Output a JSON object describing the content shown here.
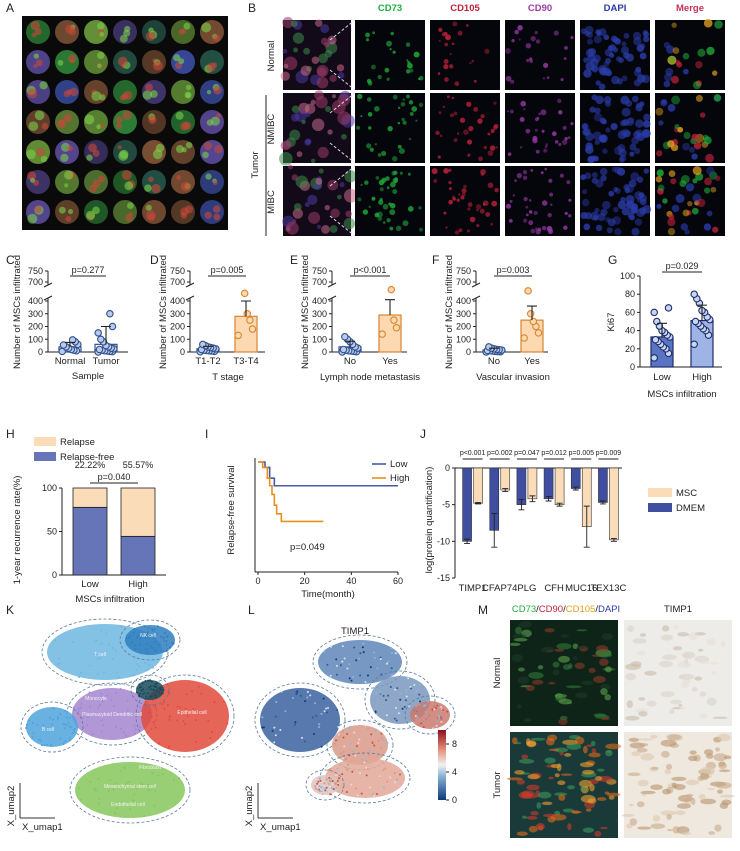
{
  "panel_letters": [
    "A",
    "B",
    "C",
    "D",
    "E",
    "F",
    "G",
    "H",
    "I",
    "J",
    "K",
    "L",
    "M"
  ],
  "panel_b": {
    "columns": [
      {
        "label": "CD73",
        "color": "#1fae3a"
      },
      {
        "label": "CD105",
        "color": "#c0223a"
      },
      {
        "label": "CD90",
        "color": "#9b3aa8"
      },
      {
        "label": "DAPI",
        "color": "#2a3ca8"
      },
      {
        "label": "Merge",
        "color": "#c8305a"
      }
    ],
    "rows": [
      "Normal",
      "NMIBC",
      "MIBC"
    ],
    "group": "Tumor"
  },
  "chart_data": [
    {
      "type": "dot_bar",
      "ylabel": "Number of MSCs infiltrated",
      "xlabel": "Sample",
      "categories": [
        "Normal",
        "Tumor"
      ],
      "values": [
        40,
        60
      ],
      "errors": [
        35,
        140
      ],
      "points": [
        [
          5,
          10,
          15,
          20,
          30,
          40,
          55,
          60,
          80,
          95
        ],
        [
          0,
          3,
          5,
          8,
          10,
          15,
          20,
          25,
          30,
          40,
          50,
          80,
          100,
          150,
          200,
          300
        ]
      ],
      "ylim": [
        0,
        750
      ],
      "ybreak": [
        400,
        700
      ],
      "yticks": [
        0,
        100,
        200,
        300,
        400,
        700,
        750
      ],
      "p_value": "p=0.277",
      "colors": [
        "#2f4f8f",
        "#2f4f8f"
      ],
      "bar_fills": [
        "none",
        "none"
      ],
      "point_fills": [
        "#b9cbe6",
        "#b9cbe6"
      ]
    },
    {
      "type": "dot_bar",
      "ylabel": "Number of MSCs infiltrated",
      "xlabel": "T stage",
      "categories": [
        "T1-T2",
        "T3-T4"
      ],
      "values": [
        25,
        280
      ],
      "errors": [
        20,
        120
      ],
      "points": [
        [
          2,
          5,
          8,
          10,
          12,
          15,
          20,
          25,
          30,
          35,
          40,
          50,
          60
        ],
        [
          130,
          180,
          250,
          300,
          520
        ]
      ],
      "ylim": [
        0,
        750
      ],
      "ybreak": [
        400,
        700
      ],
      "yticks": [
        0,
        100,
        200,
        300,
        400,
        700,
        750
      ],
      "p_value": "p=0.005",
      "colors": [
        "#2f4f8f",
        "#d9862e"
      ],
      "bar_fills": [
        "none",
        "#fcd9b0"
      ],
      "point_fills": [
        "#b9cbe6",
        "#fcd9b0"
      ]
    },
    {
      "type": "dot_bar",
      "ylabel": "Number of MSCs infiltrated",
      "xlabel": "Lymph node metastasis",
      "categories": [
        "No",
        "Yes"
      ],
      "values": [
        40,
        290
      ],
      "errors": [
        45,
        130
      ],
      "points": [
        [
          0,
          2,
          5,
          8,
          10,
          15,
          20,
          30,
          40,
          60,
          80,
          100,
          120
        ],
        [
          140,
          190,
          250,
          580
        ]
      ],
      "ylim": [
        0,
        750
      ],
      "ybreak": [
        400,
        700
      ],
      "yticks": [
        0,
        100,
        200,
        300,
        400,
        700,
        750
      ],
      "p_value": "p<0.001",
      "colors": [
        "#2f4f8f",
        "#d9862e"
      ],
      "bar_fills": [
        "none",
        "#fcd9b0"
      ],
      "point_fills": [
        "#b9cbe6",
        "#fcd9b0"
      ]
    },
    {
      "type": "dot_bar",
      "ylabel": "Number of MSCs infiltrated",
      "xlabel": "Vascular invasion",
      "categories": [
        "No",
        "Yes"
      ],
      "values": [
        15,
        250
      ],
      "errors": [
        15,
        110
      ],
      "points": [
        [
          0,
          2,
          3,
          5,
          8,
          10,
          12,
          15,
          18,
          20,
          25,
          30,
          40
        ],
        [
          110,
          150,
          200,
          240,
          300,
          560
        ]
      ],
      "ylim": [
        0,
        750
      ],
      "ybreak": [
        400,
        700
      ],
      "yticks": [
        0,
        100,
        200,
        300,
        400,
        700,
        750
      ],
      "p_value": "p=0.003",
      "colors": [
        "#2f4f8f",
        "#d9862e"
      ],
      "bar_fills": [
        "none",
        "#fcd9b0"
      ],
      "point_fills": [
        "#b9cbe6",
        "#fcd9b0"
      ]
    },
    {
      "type": "dot_bar",
      "ylabel": "Ki67",
      "xlabel": "MSCs infiltration",
      "categories": [
        "Low",
        "High"
      ],
      "values": [
        33,
        51
      ],
      "errors": [
        15,
        17
      ],
      "points": [
        [
          10,
          15,
          20,
          22,
          25,
          28,
          30,
          33,
          35,
          38,
          40,
          45,
          50,
          60,
          65
        ],
        [
          25,
          35,
          40,
          42,
          45,
          48,
          50,
          52,
          55,
          60,
          62,
          70,
          75,
          80
        ]
      ],
      "ylim": [
        0,
        100
      ],
      "yticks": [
        0,
        20,
        40,
        60,
        80,
        100
      ],
      "p_value": "p=0.029",
      "colors": [
        "#1f2d6a",
        "#1f2d6a"
      ],
      "bar_fills": [
        "#5a74c4",
        "#9fb4e6"
      ],
      "point_fills": [
        "#c9d6f0",
        "#c9d6f0"
      ]
    },
    {
      "type": "stacked_bar",
      "ylabel": "1-year recurrence rate(%)",
      "xlabel": "MSCs infiltration",
      "categories": [
        "Low",
        "High"
      ],
      "series": [
        {
          "name": "Relapse-free",
          "color": "#6674b8",
          "values": [
            77.78,
            44.43
          ]
        },
        {
          "name": "Relapse",
          "color": "#fbdcb8",
          "values": [
            22.22,
            55.57
          ],
          "value_labels": [
            "22.22%",
            "55.57%"
          ]
        }
      ],
      "ylim": [
        0,
        100
      ],
      "yticks": [
        0,
        50,
        100
      ],
      "p_value": "p=0.040"
    },
    {
      "type": "line",
      "ylabel": "Relapse-free survival",
      "xlabel": "Time(month)",
      "series": [
        {
          "name": "Low",
          "color": "#4a5aa8",
          "x": [
            0,
            3,
            3,
            5,
            5,
            7,
            7,
            60
          ],
          "values": [
            100,
            100,
            95,
            95,
            85,
            85,
            78,
            78
          ]
        },
        {
          "name": "High",
          "color": "#e8901e",
          "x": [
            0,
            2,
            2,
            4,
            4,
            5,
            5,
            6,
            6,
            7,
            7,
            8,
            8,
            10,
            10,
            28
          ],
          "values": [
            100,
            100,
            95,
            95,
            85,
            85,
            78,
            78,
            70,
            70,
            60,
            60,
            52,
            52,
            45,
            45
          ]
        }
      ],
      "xlim": [
        0,
        60
      ],
      "xticks": [
        0,
        20,
        40,
        60
      ],
      "ylim": [
        0,
        100
      ],
      "annotation": "p=0.049"
    },
    {
      "type": "bar",
      "ylabel": "log(protein quantification)",
      "categories": [
        "TIMP1",
        "CFAP74",
        "PLG",
        "CFH",
        "MUC16",
        "TEX13C"
      ],
      "series": [
        {
          "name": "DMEM",
          "color": "#3f4ea0",
          "values": [
            -10,
            -8.5,
            -5,
            -4.2,
            -2.8,
            -4.7
          ],
          "errors": [
            0.3,
            2.3,
            0.7,
            0.3,
            0.2,
            0.2
          ]
        },
        {
          "name": "MSC",
          "color": "#fbdcb8",
          "values": [
            -4.8,
            -3,
            -4.2,
            -5,
            -8,
            -9.8
          ],
          "errors": [
            0.1,
            0.2,
            0.4,
            0.2,
            2.8,
            0.2
          ]
        }
      ],
      "ylim": [
        -15,
        0
      ],
      "yticks": [
        0,
        -5,
        -10,
        -15
      ],
      "p_values": [
        "p<0.001",
        "p=0.002",
        "p=0.047",
        "p=0.012",
        "p=0.005",
        "p=0.009"
      ]
    }
  ],
  "panel_k": {
    "clusters": [
      "NK cell",
      "T cell",
      "Monocyte",
      "Plasmacytoid Dendritic cell",
      "B cell",
      "Epithelial cell",
      "Fibroblast",
      "Mesenchymal stem cell",
      "Endothelial cell"
    ],
    "xlabel": "X_umap1",
    "ylabel": "X_umap2"
  },
  "panel_l": {
    "title": "TIMP1",
    "colorbar_ticks": [
      0,
      4,
      8
    ],
    "colorbar_lim": [
      0,
      10
    ],
    "xlabel": "X_umap1",
    "ylabel": "X_umap2"
  },
  "panel_m": {
    "stain_parts": [
      {
        "text": "CD73",
        "color": "#1fae3a"
      },
      {
        "text": "/",
        "color": "#222"
      },
      {
        "text": "CD90",
        "color": "#c0223a"
      },
      {
        "text": "/",
        "color": "#222"
      },
      {
        "text": "CD105",
        "color": "#e0a020"
      },
      {
        "text": "/",
        "color": "#222"
      },
      {
        "text": "DAPI",
        "color": "#2a3ca8"
      }
    ],
    "title": "TIMP1",
    "rows": [
      "Normal",
      "Tumor"
    ]
  }
}
